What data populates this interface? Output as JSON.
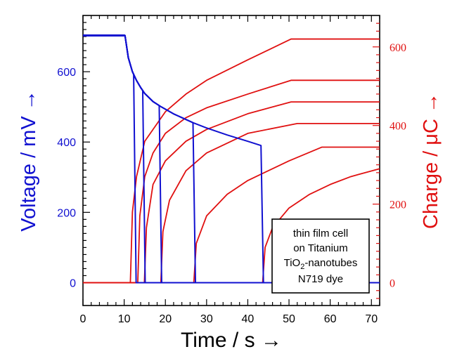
{
  "chart_data": {
    "type": "line",
    "title": "",
    "xlabel": "Time / s →",
    "ylabel_left": "Voltage / mV  →",
    "ylabel_right": "Charge / μC →",
    "xlim": [
      0,
      72
    ],
    "ylim_left": [
      -65,
      760
    ],
    "ylim_right": [
      -58,
      680
    ],
    "x_ticks": [
      "0",
      "10",
      "20",
      "30",
      "40",
      "50",
      "60",
      "70"
    ],
    "y_ticks_left": [
      "0",
      "200",
      "400",
      "600"
    ],
    "y_ticks_right": [
      "0",
      "200",
      "400",
      "600"
    ],
    "colors": {
      "voltage": "#1010d0",
      "charge": "#e01010",
      "axes": "#000000"
    },
    "annotation": {
      "line1": "thin film cell",
      "line2": "on Titanium",
      "line3_main": "TiO",
      "line3_sub": "2",
      "line3_rest": "-nanotubes",
      "line4": "N719 dye"
    },
    "voltage_open_circuit_mV": 703,
    "voltage_light_off_s": 10.2,
    "voltage_decay_curve": {
      "axis": "left",
      "x": [
        10.2,
        11,
        12,
        13,
        14,
        15,
        17,
        19,
        22,
        26.7,
        30,
        35,
        40,
        43.2
      ],
      "y": [
        703,
        640,
        600,
        575,
        555,
        538,
        515,
        500,
        480,
        455,
        440,
        420,
        402,
        390
      ]
    },
    "voltage_series": [
      {
        "name": "discharge at 12.3 s",
        "switch_x": 12.3,
        "end_x": 12.9
      },
      {
        "name": "discharge at 14.5 s",
        "switch_x": 14.5,
        "end_x": 15.1
      },
      {
        "name": "discharge at 18.5 s",
        "switch_x": 18.5,
        "end_x": 19.1
      },
      {
        "name": "discharge at 26.7 s",
        "switch_x": 26.7,
        "end_x": 27.3
      },
      {
        "name": "discharge at 43.2 s",
        "switch_x": 43.2,
        "end_x": 43.8
      }
    ],
    "charge_series": [
      {
        "name": "start 11.5 s",
        "axis": "right",
        "start_x": 11.5,
        "plateau_x": 50.5,
        "x": [
          11.5,
          12,
          13,
          15,
          20,
          25,
          30,
          40,
          50.5,
          72
        ],
        "y": [
          0,
          180,
          270,
          360,
          435,
          480,
          515,
          567,
          620,
          620
        ]
      },
      {
        "name": "start 13.3 s",
        "axis": "right",
        "start_x": 13.3,
        "plateau_x": 50.5,
        "x": [
          13.3,
          13.8,
          15,
          17,
          20,
          25,
          30,
          40,
          50.5,
          72
        ],
        "y": [
          0,
          170,
          270,
          330,
          380,
          420,
          445,
          480,
          515,
          515
        ]
      },
      {
        "name": "start 14.9 s",
        "axis": "right",
        "start_x": 14.9,
        "plateau_x": 50.5,
        "x": [
          14.9,
          15.4,
          17,
          20,
          25,
          30,
          40,
          50.5,
          72
        ],
        "y": [
          0,
          140,
          250,
          310,
          360,
          390,
          430,
          460,
          460
        ]
      },
      {
        "name": "start 18.9 s",
        "axis": "right",
        "start_x": 18.9,
        "plateau_x": 52,
        "x": [
          18.9,
          19.4,
          21,
          25,
          30,
          40,
          52,
          72
        ],
        "y": [
          0,
          130,
          210,
          285,
          330,
          380,
          405,
          405
        ]
      },
      {
        "name": "start 26.9 s",
        "axis": "right",
        "start_x": 26.9,
        "plateau_x": 58,
        "x": [
          26.9,
          27.5,
          30,
          35,
          40,
          50,
          58,
          72
        ],
        "y": [
          0,
          100,
          170,
          225,
          260,
          310,
          345,
          345
        ]
      },
      {
        "name": "start 43.6 s",
        "axis": "right",
        "start_x": 43.6,
        "x": [
          43.6,
          44.2,
          46,
          50,
          55,
          60,
          65,
          72
        ],
        "y": [
          0,
          90,
          140,
          190,
          225,
          250,
          270,
          290
        ]
      }
    ]
  }
}
